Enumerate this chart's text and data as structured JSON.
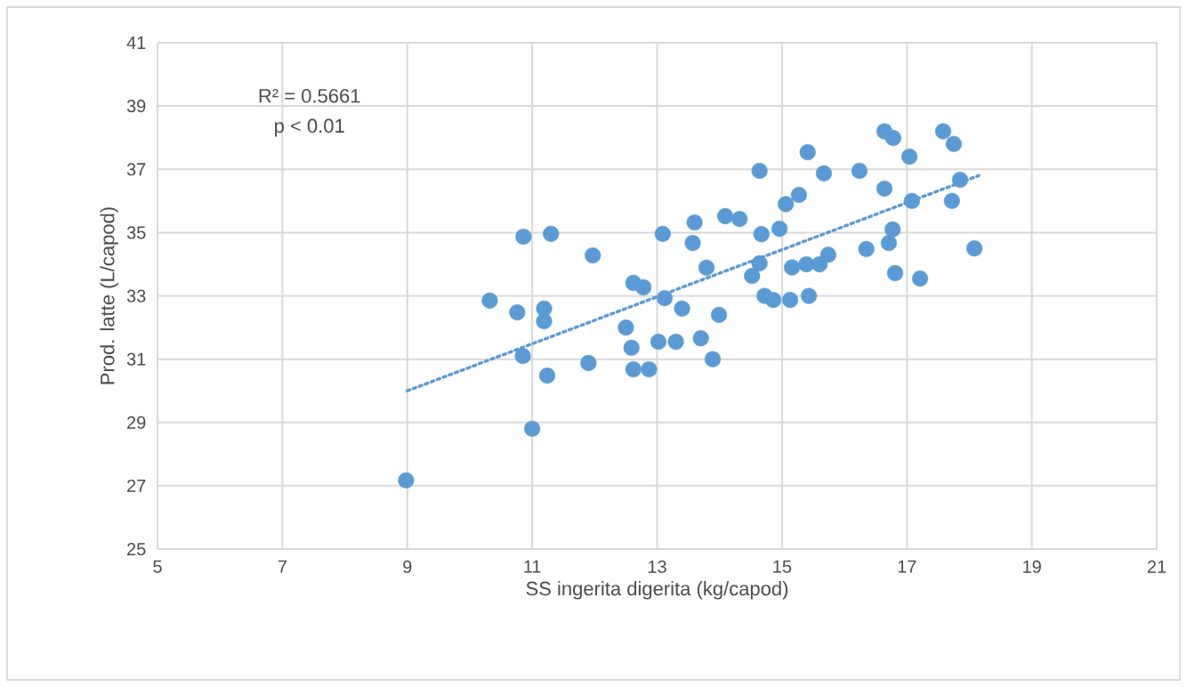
{
  "chart_data": {
    "type": "scatter",
    "xlabel": "SS ingerita digerita (kg/capod)",
    "ylabel": "Prod. latte (L/capod)",
    "xlim": [
      5,
      21
    ],
    "xticks": [
      5,
      7,
      9,
      11,
      13,
      15,
      17,
      19,
      21
    ],
    "ylim": [
      25,
      41
    ],
    "yticks": [
      25,
      27,
      29,
      31,
      33,
      35,
      37,
      39,
      41
    ],
    "grid": true,
    "marker": "circle",
    "annotations": [
      "R² = 0.5661",
      "p < 0.01"
    ],
    "series": [
      {
        "color": "#5b9bd5",
        "x": [
          8.98,
          11.0,
          10.32,
          10.76,
          11.19,
          11.19,
          10.85,
          11.24,
          10.86,
          11.3,
          11.97,
          11.9,
          12.5,
          12.59,
          12.62,
          12.87,
          12.62,
          12.78,
          13.02,
          13.3,
          13.12,
          13.09,
          13.4,
          13.7,
          13.89,
          13.99,
          13.79,
          13.57,
          13.6,
          14.09,
          14.32,
          14.52,
          14.64,
          14.64,
          14.67,
          14.72,
          14.86,
          14.96,
          15.06,
          15.13,
          15.16,
          15.27,
          15.39,
          15.41,
          15.43,
          15.6,
          15.67,
          15.74,
          16.24,
          16.35,
          16.64,
          16.64,
          16.71,
          16.77,
          16.78,
          16.81,
          17.04,
          17.08,
          17.21,
          17.58,
          17.72,
          17.75,
          17.85,
          18.08
        ],
        "values": [
          27.17,
          28.8,
          32.85,
          32.48,
          32.6,
          32.2,
          31.1,
          30.48,
          34.87,
          34.96,
          34.28,
          30.88,
          32.0,
          31.36,
          30.68,
          30.68,
          33.41,
          33.27,
          31.55,
          31.55,
          32.93,
          34.96,
          32.6,
          31.66,
          31.0,
          32.4,
          33.89,
          34.67,
          35.32,
          35.52,
          35.43,
          33.63,
          34.03,
          36.95,
          34.95,
          33.0,
          32.87,
          35.12,
          35.9,
          32.87,
          33.9,
          36.19,
          34.0,
          37.54,
          33.0,
          34.0,
          36.87,
          34.3,
          36.95,
          34.48,
          36.39,
          38.2,
          34.67,
          35.1,
          37.99,
          33.72,
          37.4,
          36.0,
          33.55,
          38.2,
          36.0,
          37.8,
          36.67,
          34.5
        ]
      },
      {
        "type": "line",
        "color": "#5b9bd5",
        "line_style": "dotted",
        "marker": "none",
        "x": [
          9,
          18.15
        ],
        "values": [
          30.0,
          36.8
        ]
      }
    ]
  }
}
